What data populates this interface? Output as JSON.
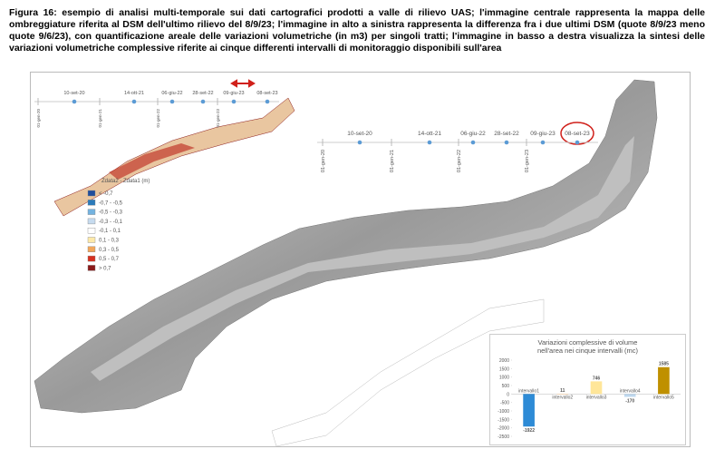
{
  "caption": "Figura 16: esempio di analisi multi-temporale sui dati cartografici prodotti a valle di rilievo UAS; l'immagine centrale rappresenta la mappa delle ombreggiature riferita al DSM dell'ultimo rilievo del 8/9/23; l'immagine in alto a sinistra rappresenta la differenza fra i due ultimi DSM (quote 8/9/23 meno quote 9/6/23), con quantificazione areale delle variazioni volumetriche (in m3) per singoli tratti; l'immagine in basso a destra visualizza la sintesi delle variazioni volumetriche complessive riferite ai cinque differenti intervalli di monitoraggio disponibili sull'area",
  "timeline": {
    "surveys": [
      "10-set-20",
      "14-ott-21",
      "06-giu-22",
      "28-set-22",
      "09-giu-23",
      "08-set-23"
    ],
    "years": [
      "01-gen-20",
      "01-gen-21",
      "01-gen-22",
      "01-gen-23"
    ]
  },
  "legend": {
    "title": "Zdata2 - Zdata1 (m)",
    "items": [
      {
        "label": "< -0,7",
        "color": "#1f4e9c"
      },
      {
        "label": "-0,7 - -0,5",
        "color": "#2b7bba"
      },
      {
        "label": "-0,5 - -0,3",
        "color": "#74b3e0"
      },
      {
        "label": "-0,3 - -0,1",
        "color": "#c6dbef"
      },
      {
        "label": "-0,1 - 0,1",
        "color": "#ffffff"
      },
      {
        "label": "0,1 - 0,3",
        "color": "#fde9a9"
      },
      {
        "label": "0,3 - 0,5",
        "color": "#f2a65a"
      },
      {
        "label": "0,5 - 0,7",
        "color": "#d7301f"
      },
      {
        "label": "> 0,7",
        "color": "#8b1a1a"
      }
    ]
  },
  "chart_data": {
    "type": "bar",
    "title": "Variazioni complessive di volume nell'area nei cinque intervalli (mc)",
    "categories": [
      "intervallo1",
      "intervallo2",
      "intervallo3",
      "intervallo4",
      "intervallo5"
    ],
    "values": [
      -1922,
      11,
      746,
      -170,
      1585
    ],
    "colors": [
      "#2e8bd6",
      "#f4c28a",
      "#ffe699",
      "#bdd7ee",
      "#bf9000"
    ],
    "ylim": [
      -2500,
      2000
    ],
    "yticks": [
      -2500,
      -2000,
      -1500,
      -1000,
      -500,
      0,
      500,
      1000,
      1500,
      2000
    ]
  }
}
